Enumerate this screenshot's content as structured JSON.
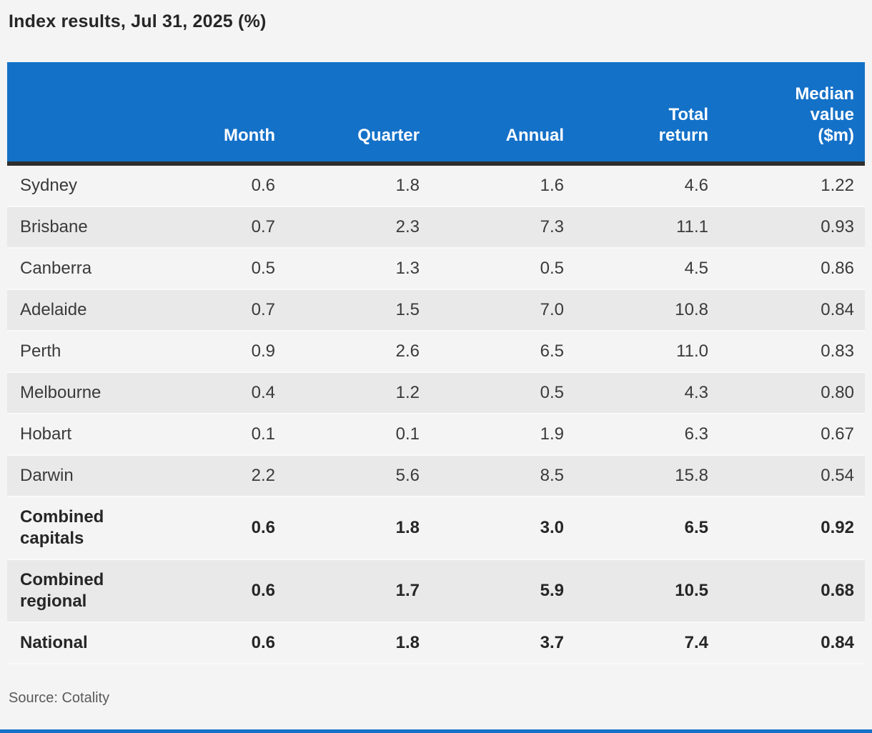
{
  "header": {
    "title": "Index results, Jul 31, 2025 (%)"
  },
  "footer": {
    "source": "Source: Cotality"
  },
  "colors": {
    "header_bg": "#1471c8",
    "header_text": "#ffffff",
    "dark_rule": "#2e2e2e",
    "row_light": "#f4f4f4",
    "row_dark": "#e9e9e9",
    "page_bg": "#f4f4f4",
    "body_text": "#3a3a3a",
    "bottom_accent": "#1471c8"
  },
  "chart_data": {
    "type": "table",
    "title": "Index results, Jul 31, 2025 (%)",
    "columns": [
      "",
      "Month",
      "Quarter",
      "Annual",
      "Total\nreturn",
      "Median\nvalue\n($m)"
    ],
    "rows": [
      {
        "label": "Sydney",
        "bold": false,
        "values": [
          "0.6",
          "1.8",
          "1.6",
          "4.6",
          "1.22"
        ]
      },
      {
        "label": "Brisbane",
        "bold": false,
        "values": [
          "0.7",
          "2.3",
          "7.3",
          "11.1",
          "0.93"
        ]
      },
      {
        "label": "Canberra",
        "bold": false,
        "values": [
          "0.5",
          "1.3",
          "0.5",
          "4.5",
          "0.86"
        ]
      },
      {
        "label": "Adelaide",
        "bold": false,
        "values": [
          "0.7",
          "1.5",
          "7.0",
          "10.8",
          "0.84"
        ]
      },
      {
        "label": "Perth",
        "bold": false,
        "values": [
          "0.9",
          "2.6",
          "6.5",
          "11.0",
          "0.83"
        ]
      },
      {
        "label": "Melbourne",
        "bold": false,
        "values": [
          "0.4",
          "1.2",
          "0.5",
          "4.3",
          "0.80"
        ]
      },
      {
        "label": "Hobart",
        "bold": false,
        "values": [
          "0.1",
          "0.1",
          "1.9",
          "6.3",
          "0.67"
        ]
      },
      {
        "label": "Darwin",
        "bold": false,
        "values": [
          "2.2",
          "5.6",
          "8.5",
          "15.8",
          "0.54"
        ]
      },
      {
        "label": "Combined\ncapitals",
        "bold": true,
        "values": [
          "0.6",
          "1.8",
          "3.0",
          "6.5",
          "0.92"
        ]
      },
      {
        "label": "Combined\nregional",
        "bold": true,
        "values": [
          "0.6",
          "1.7",
          "5.9",
          "10.5",
          "0.68"
        ]
      },
      {
        "label": "National",
        "bold": true,
        "values": [
          "0.6",
          "1.8",
          "3.7",
          "7.4",
          "0.84"
        ]
      }
    ]
  }
}
